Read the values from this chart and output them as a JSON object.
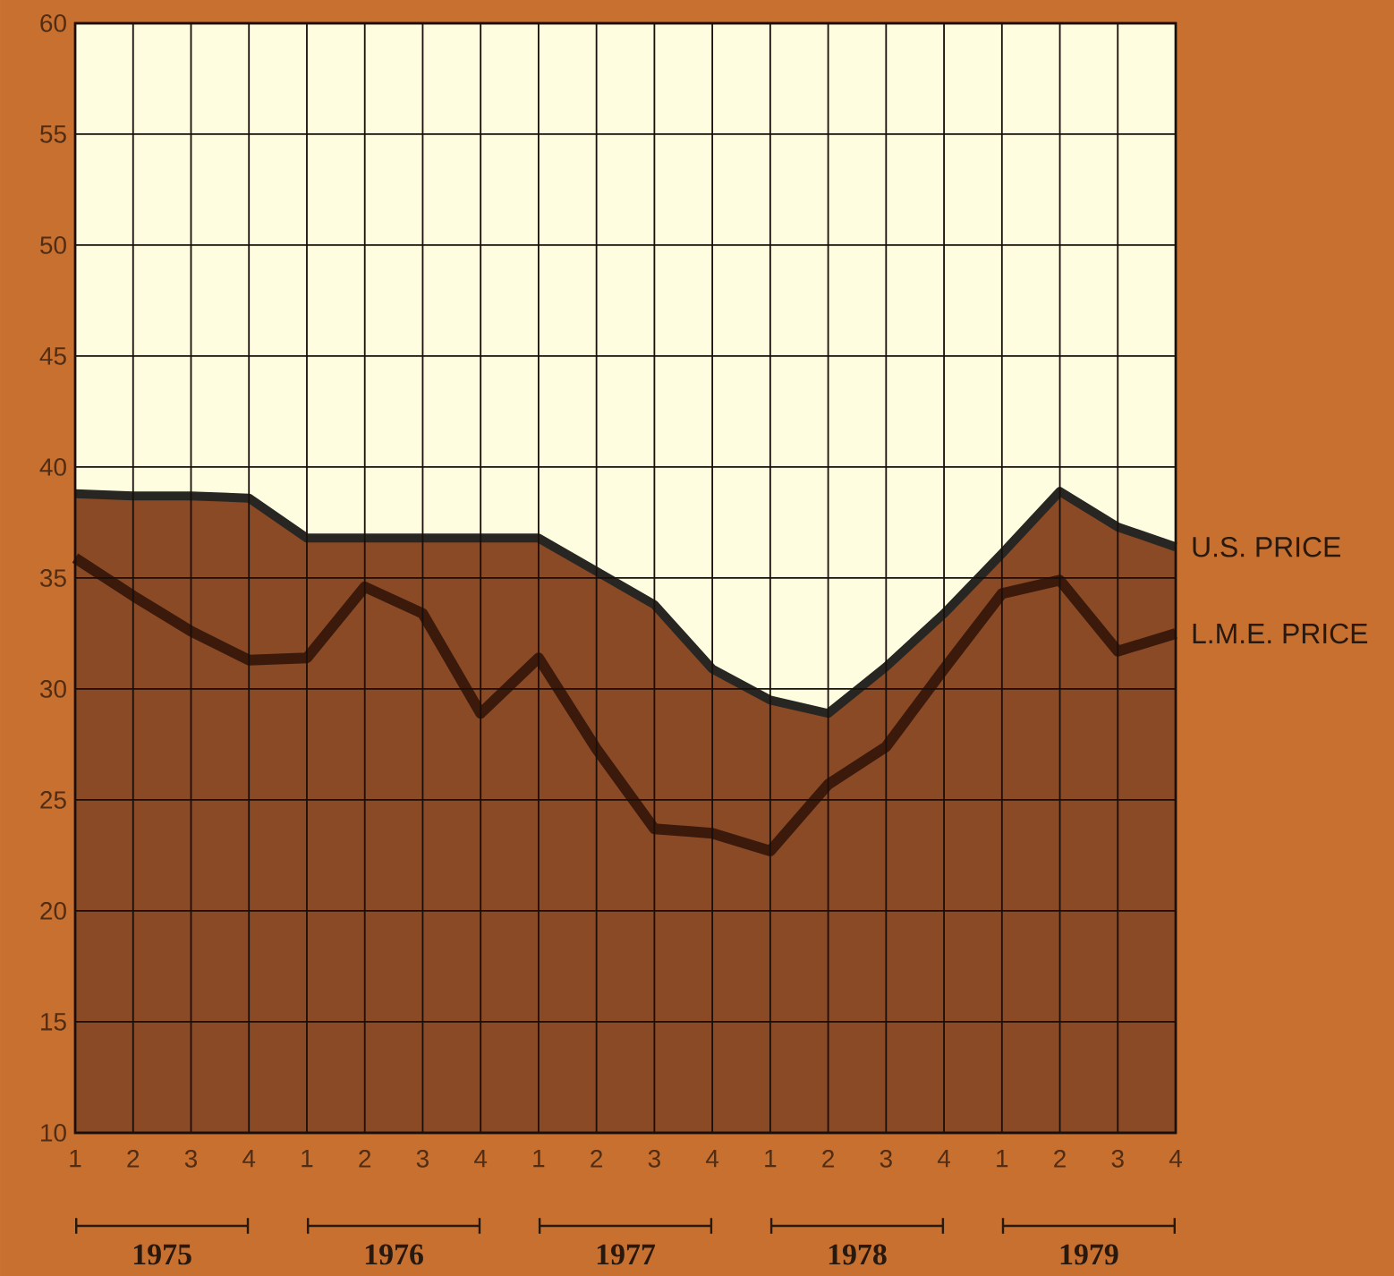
{
  "chart_data": {
    "type": "line",
    "categories": [
      "1",
      "2",
      "3",
      "4",
      "1",
      "2",
      "3",
      "4",
      "1",
      "2",
      "3",
      "4",
      "1",
      "2",
      "3",
      "4",
      "1",
      "2",
      "3",
      "4"
    ],
    "series": [
      {
        "name": "U.S. PRICE",
        "type": "area",
        "color": "#8b4a26",
        "values": [
          38.8,
          38.7,
          38.7,
          38.6,
          36.8,
          36.8,
          36.8,
          36.8,
          36.8,
          35.3,
          33.8,
          30.9,
          29.5,
          28.9,
          31.0,
          33.4,
          36.1,
          38.9,
          37.3,
          36.4
        ]
      },
      {
        "name": "L.M.E. PRICE",
        "color": "#3b1a0c",
        "values": [
          35.9,
          34.2,
          32.6,
          31.3,
          31.4,
          34.6,
          33.4,
          28.9,
          31.4,
          27.3,
          23.7,
          23.5,
          22.7,
          25.7,
          27.4,
          30.9,
          34.3,
          34.9,
          31.7,
          32.5
        ]
      }
    ],
    "ylim": [
      10,
      60
    ],
    "yticks": [
      10,
      15,
      20,
      25,
      30,
      35,
      40,
      45,
      50,
      55,
      60
    ],
    "bands": [
      {
        "axis": "y",
        "from": 10,
        "to": 60,
        "color": "#fffde0"
      }
    ],
    "grid": true,
    "legend": false,
    "annotations": [
      "1975",
      "1976",
      "1977",
      "1978",
      "1979"
    ]
  }
}
